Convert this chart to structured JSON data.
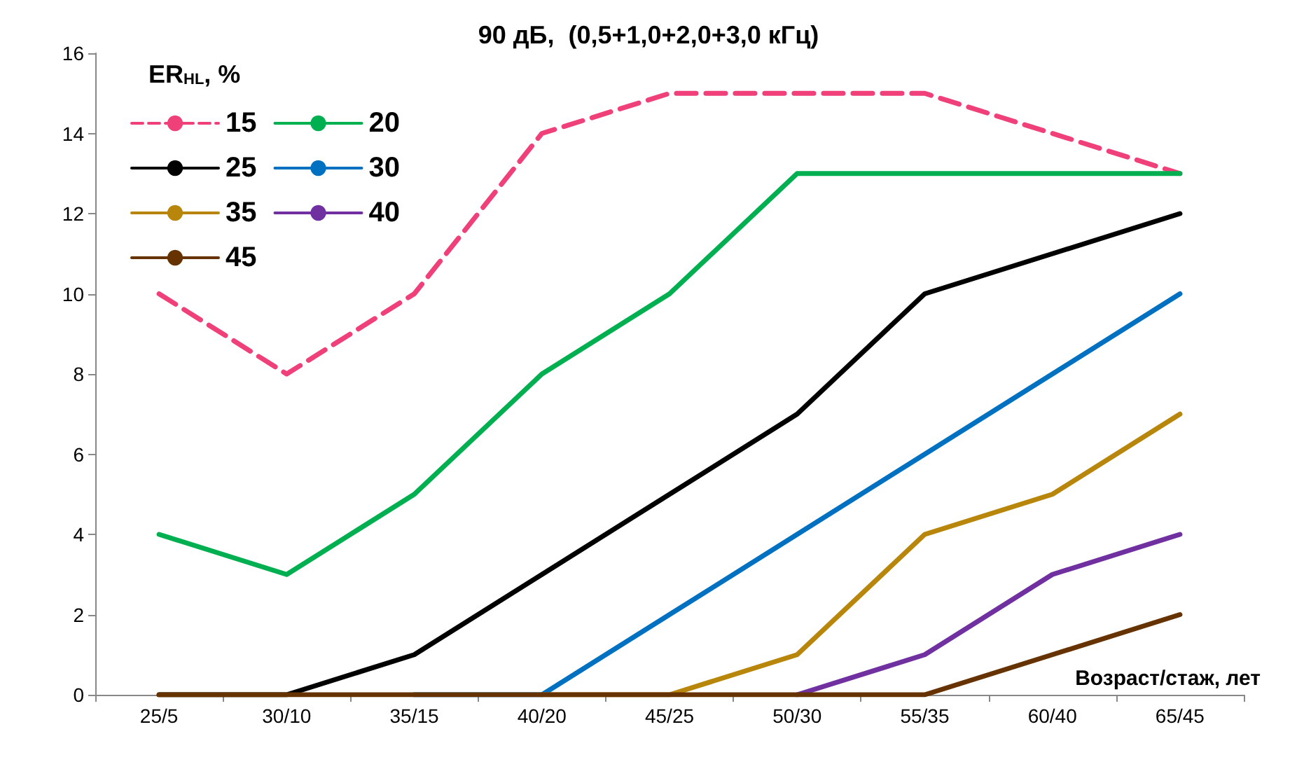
{
  "chart_data": {
    "type": "line",
    "title": "90 дБ,  (0,5+1,0+2,0+3,0 кГц)",
    "ylabel": "ER$_{HL}$, %",
    "xlabel": "Возраст/стаж, лет",
    "categories": [
      "25/5",
      "30/10",
      "35/15",
      "40/20",
      "45/25",
      "50/30",
      "55/35",
      "60/40",
      "65/45"
    ],
    "ylim": [
      0,
      16
    ],
    "yticks": [
      0,
      2,
      4,
      6,
      8,
      10,
      12,
      14,
      16
    ],
    "grid": false,
    "legend": "top left",
    "marker": "none",
    "series": [
      {
        "name": "15",
        "color": "#f0407a",
        "line_style": "dashed",
        "values": [
          10,
          8,
          10,
          14,
          15,
          15,
          15,
          14,
          13
        ]
      },
      {
        "name": "20",
        "color": "#00b050",
        "values": [
          4,
          3,
          5,
          8,
          10,
          13,
          13,
          13,
          13
        ]
      },
      {
        "name": "25",
        "color": "#000000",
        "values": [
          0,
          0,
          1,
          3,
          5,
          7,
          10,
          11,
          12
        ]
      },
      {
        "name": "30",
        "color": "#0070c0",
        "values": [
          null,
          null,
          0,
          0,
          2,
          4,
          6,
          8,
          10
        ]
      },
      {
        "name": "35",
        "color": "#b8860b",
        "values": [
          null,
          null,
          null,
          0,
          0,
          1,
          4,
          5,
          7
        ]
      },
      {
        "name": "40",
        "color": "#7030a0",
        "values": [
          null,
          null,
          null,
          null,
          null,
          0,
          1,
          3,
          4
        ]
      },
      {
        "name": "45",
        "color": "#663300",
        "values": [
          0,
          0,
          0,
          0,
          0,
          0,
          0,
          1,
          2
        ]
      }
    ]
  }
}
